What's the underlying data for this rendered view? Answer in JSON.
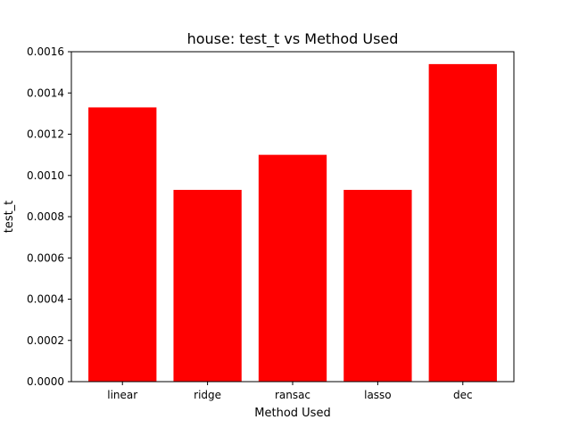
{
  "chart_data": {
    "type": "bar",
    "title": "house: test_t vs Method Used",
    "xlabel": "Method Used",
    "ylabel": "test_t",
    "categories": [
      "linear",
      "ridge",
      "ransac",
      "lasso",
      "dec"
    ],
    "values": [
      0.00133,
      0.00093,
      0.0011,
      0.00093,
      0.00154
    ],
    "ylim": [
      0,
      0.0016
    ],
    "yticks": [
      "0.0000",
      "0.0002",
      "0.0004",
      "0.0006",
      "0.0008",
      "0.0010",
      "0.0012",
      "0.0014",
      "0.0016"
    ],
    "bar_color": "#ff0000",
    "grid": false
  }
}
